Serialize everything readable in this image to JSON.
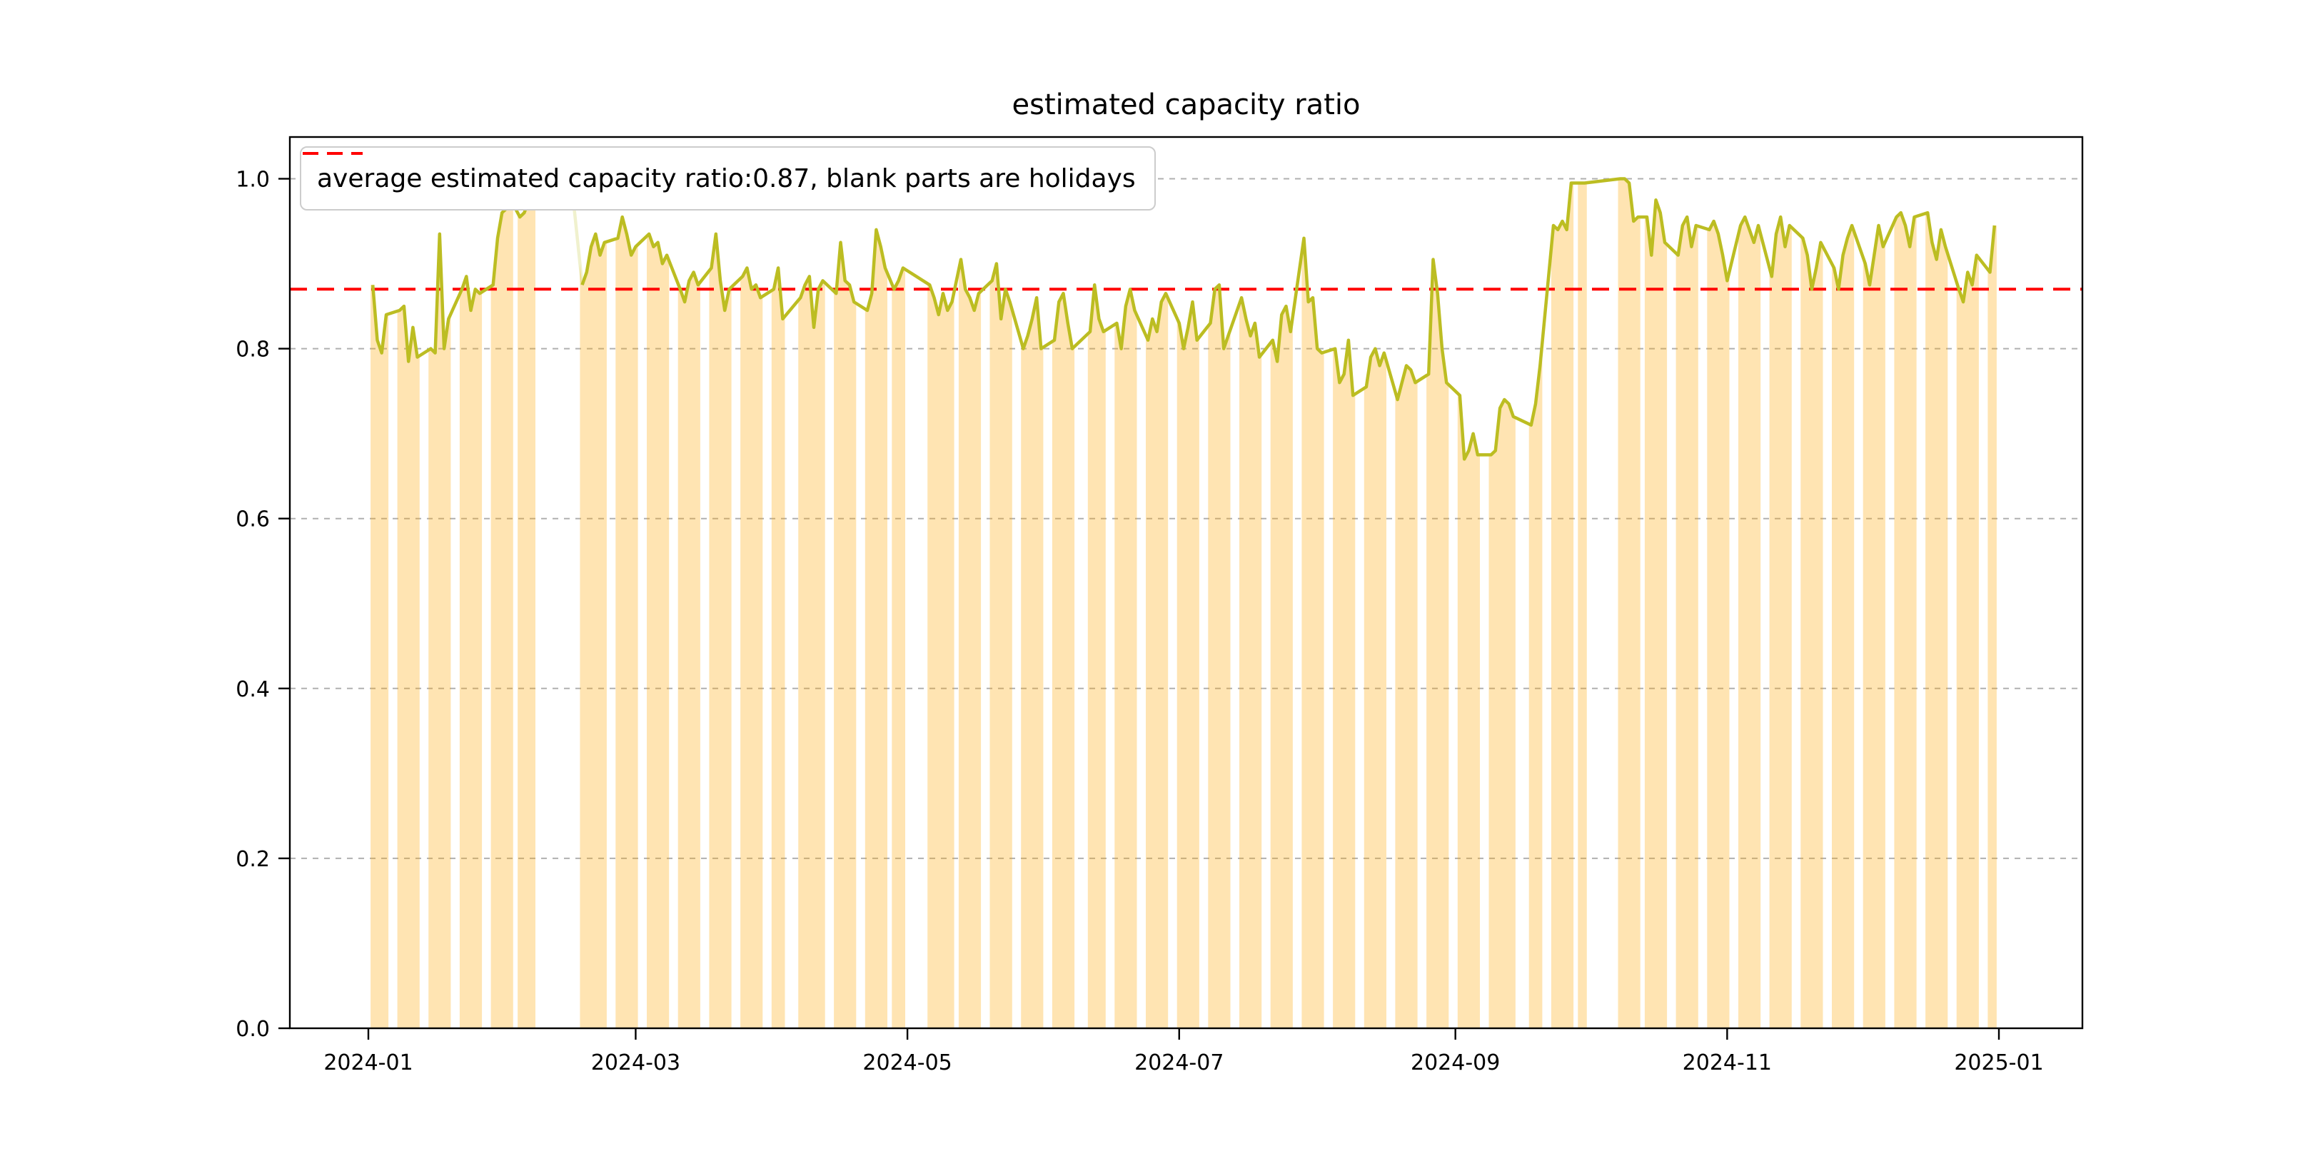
{
  "chart_data": {
    "type": "area",
    "title": "estimated capacity ratio",
    "legend": {
      "label": "average estimated capacity ratio:0.87, blank parts are holidays"
    },
    "average_line": {
      "value": 0.87
    },
    "x_axis": {
      "start_date": "2024-01-01",
      "tick_labels": [
        "2024-01",
        "2024-03",
        "2024-05",
        "2024-07",
        "2024-09",
        "2024-11",
        "2025-01"
      ],
      "tick_day_offsets": [
        0,
        60,
        121,
        182,
        244,
        305,
        366
      ]
    },
    "y_axis": {
      "tick_labels": [
        "0.0",
        "0.2",
        "0.4",
        "0.6",
        "0.8",
        "1.0"
      ],
      "ticks": [
        0.0,
        0.2,
        0.4,
        0.6,
        0.8,
        1.0
      ],
      "range": [
        0.0,
        1.05
      ]
    },
    "series": {
      "name": "estimated capacity ratio",
      "points": [
        [
          1,
          0.875
        ],
        [
          2,
          0.81
        ],
        [
          3,
          0.795
        ],
        [
          4,
          0.84
        ],
        [
          7,
          0.845
        ],
        [
          8,
          0.85
        ],
        [
          9,
          0.785
        ],
        [
          10,
          0.825
        ],
        [
          11,
          0.79
        ],
        [
          14,
          0.8
        ],
        [
          15,
          0.795
        ],
        [
          16,
          0.935
        ],
        [
          17,
          0.8
        ],
        [
          18,
          0.835
        ],
        [
          21,
          0.87
        ],
        [
          22,
          0.885
        ],
        [
          23,
          0.845
        ],
        [
          24,
          0.87
        ],
        [
          25,
          0.865
        ],
        [
          28,
          0.875
        ],
        [
          29,
          0.93
        ],
        [
          30,
          0.96
        ],
        [
          31,
          0.965
        ],
        [
          32,
          0.975
        ],
        [
          34,
          0.955
        ],
        [
          35,
          0.96
        ],
        [
          36,
          0.975
        ],
        [
          37,
          0.985
        ],
        [
          48,
          0.875
        ],
        [
          49,
          0.89
        ],
        [
          50,
          0.92
        ],
        [
          51,
          0.935
        ],
        [
          52,
          0.91
        ],
        [
          53,
          0.925
        ],
        [
          56,
          0.93
        ],
        [
          57,
          0.955
        ],
        [
          58,
          0.935
        ],
        [
          59,
          0.91
        ],
        [
          60,
          0.92
        ],
        [
          63,
          0.935
        ],
        [
          64,
          0.92
        ],
        [
          65,
          0.925
        ],
        [
          66,
          0.9
        ],
        [
          67,
          0.91
        ],
        [
          70,
          0.87
        ],
        [
          71,
          0.855
        ],
        [
          72,
          0.88
        ],
        [
          73,
          0.89
        ],
        [
          74,
          0.875
        ],
        [
          77,
          0.895
        ],
        [
          78,
          0.935
        ],
        [
          79,
          0.88
        ],
        [
          80,
          0.845
        ],
        [
          81,
          0.87
        ],
        [
          84,
          0.885
        ],
        [
          85,
          0.895
        ],
        [
          86,
          0.87
        ],
        [
          87,
          0.875
        ],
        [
          88,
          0.86
        ],
        [
          91,
          0.87
        ],
        [
          92,
          0.895
        ],
        [
          93,
          0.835
        ],
        [
          97,
          0.86
        ],
        [
          98,
          0.875
        ],
        [
          99,
          0.885
        ],
        [
          100,
          0.825
        ],
        [
          101,
          0.87
        ],
        [
          102,
          0.88
        ],
        [
          105,
          0.865
        ],
        [
          106,
          0.925
        ],
        [
          107,
          0.88
        ],
        [
          108,
          0.875
        ],
        [
          109,
          0.855
        ],
        [
          112,
          0.845
        ],
        [
          113,
          0.865
        ],
        [
          114,
          0.94
        ],
        [
          115,
          0.92
        ],
        [
          116,
          0.895
        ],
        [
          118,
          0.87
        ],
        [
          119,
          0.88
        ],
        [
          120,
          0.895
        ],
        [
          126,
          0.875
        ],
        [
          127,
          0.86
        ],
        [
          128,
          0.84
        ],
        [
          129,
          0.865
        ],
        [
          130,
          0.845
        ],
        [
          131,
          0.855
        ],
        [
          133,
          0.905
        ],
        [
          134,
          0.87
        ],
        [
          135,
          0.86
        ],
        [
          136,
          0.845
        ],
        [
          137,
          0.865
        ],
        [
          140,
          0.88
        ],
        [
          141,
          0.9
        ],
        [
          142,
          0.835
        ],
        [
          143,
          0.87
        ],
        [
          144,
          0.855
        ],
        [
          147,
          0.8
        ],
        [
          148,
          0.815
        ],
        [
          149,
          0.835
        ],
        [
          150,
          0.86
        ],
        [
          151,
          0.8
        ],
        [
          154,
          0.81
        ],
        [
          155,
          0.855
        ],
        [
          156,
          0.865
        ],
        [
          157,
          0.83
        ],
        [
          158,
          0.8
        ],
        [
          162,
          0.82
        ],
        [
          163,
          0.875
        ],
        [
          164,
          0.835
        ],
        [
          165,
          0.82
        ],
        [
          168,
          0.83
        ],
        [
          169,
          0.8
        ],
        [
          170,
          0.85
        ],
        [
          171,
          0.87
        ],
        [
          172,
          0.845
        ],
        [
          175,
          0.81
        ],
        [
          176,
          0.835
        ],
        [
          177,
          0.82
        ],
        [
          178,
          0.855
        ],
        [
          179,
          0.865
        ],
        [
          182,
          0.83
        ],
        [
          183,
          0.8
        ],
        [
          184,
          0.825
        ],
        [
          185,
          0.855
        ],
        [
          186,
          0.81
        ],
        [
          189,
          0.83
        ],
        [
          190,
          0.87
        ],
        [
          191,
          0.875
        ],
        [
          192,
          0.8
        ],
        [
          193,
          0.815
        ],
        [
          196,
          0.86
        ],
        [
          197,
          0.835
        ],
        [
          198,
          0.815
        ],
        [
          199,
          0.83
        ],
        [
          200,
          0.79
        ],
        [
          203,
          0.81
        ],
        [
          204,
          0.785
        ],
        [
          205,
          0.84
        ],
        [
          206,
          0.85
        ],
        [
          207,
          0.82
        ],
        [
          210,
          0.93
        ],
        [
          211,
          0.855
        ],
        [
          212,
          0.86
        ],
        [
          213,
          0.8
        ],
        [
          214,
          0.795
        ],
        [
          217,
          0.8
        ],
        [
          218,
          0.76
        ],
        [
          219,
          0.77
        ],
        [
          220,
          0.81
        ],
        [
          221,
          0.745
        ],
        [
          224,
          0.755
        ],
        [
          225,
          0.79
        ],
        [
          226,
          0.8
        ],
        [
          227,
          0.78
        ],
        [
          228,
          0.795
        ],
        [
          231,
          0.74
        ],
        [
          232,
          0.76
        ],
        [
          233,
          0.78
        ],
        [
          234,
          0.775
        ],
        [
          235,
          0.76
        ],
        [
          238,
          0.77
        ],
        [
          239,
          0.905
        ],
        [
          240,
          0.865
        ],
        [
          241,
          0.8
        ],
        [
          242,
          0.76
        ],
        [
          245,
          0.745
        ],
        [
          246,
          0.67
        ],
        [
          247,
          0.68
        ],
        [
          248,
          0.7
        ],
        [
          249,
          0.675
        ],
        [
          252,
          0.675
        ],
        [
          253,
          0.68
        ],
        [
          254,
          0.73
        ],
        [
          255,
          0.74
        ],
        [
          256,
          0.735
        ],
        [
          257,
          0.72
        ],
        [
          261,
          0.71
        ],
        [
          262,
          0.735
        ],
        [
          263,
          0.78
        ],
        [
          266,
          0.945
        ],
        [
          267,
          0.94
        ],
        [
          268,
          0.95
        ],
        [
          269,
          0.94
        ],
        [
          270,
          0.995
        ],
        [
          272,
          0.995
        ],
        [
          273,
          0.995
        ],
        [
          281,
          1.0
        ],
        [
          282,
          1.0
        ],
        [
          283,
          0.995
        ],
        [
          284,
          0.95
        ],
        [
          285,
          0.955
        ],
        [
          287,
          0.955
        ],
        [
          288,
          0.91
        ],
        [
          289,
          0.975
        ],
        [
          290,
          0.96
        ],
        [
          291,
          0.925
        ],
        [
          294,
          0.91
        ],
        [
          295,
          0.945
        ],
        [
          296,
          0.955
        ],
        [
          297,
          0.92
        ],
        [
          298,
          0.945
        ],
        [
          301,
          0.94
        ],
        [
          302,
          0.95
        ],
        [
          303,
          0.935
        ],
        [
          304,
          0.91
        ],
        [
          305,
          0.88
        ],
        [
          308,
          0.945
        ],
        [
          309,
          0.955
        ],
        [
          310,
          0.94
        ],
        [
          311,
          0.925
        ],
        [
          312,
          0.945
        ],
        [
          315,
          0.885
        ],
        [
          316,
          0.935
        ],
        [
          317,
          0.955
        ],
        [
          318,
          0.92
        ],
        [
          319,
          0.945
        ],
        [
          322,
          0.93
        ],
        [
          323,
          0.91
        ],
        [
          324,
          0.87
        ],
        [
          325,
          0.895
        ],
        [
          326,
          0.925
        ],
        [
          329,
          0.895
        ],
        [
          330,
          0.87
        ],
        [
          331,
          0.91
        ],
        [
          332,
          0.93
        ],
        [
          333,
          0.945
        ],
        [
          336,
          0.9
        ],
        [
          337,
          0.875
        ],
        [
          338,
          0.91
        ],
        [
          339,
          0.945
        ],
        [
          340,
          0.92
        ],
        [
          343,
          0.955
        ],
        [
          344,
          0.96
        ],
        [
          345,
          0.945
        ],
        [
          346,
          0.92
        ],
        [
          347,
          0.955
        ],
        [
          350,
          0.96
        ],
        [
          351,
          0.925
        ],
        [
          352,
          0.905
        ],
        [
          353,
          0.94
        ],
        [
          354,
          0.92
        ],
        [
          357,
          0.87
        ],
        [
          358,
          0.855
        ],
        [
          359,
          0.89
        ],
        [
          360,
          0.875
        ],
        [
          361,
          0.91
        ],
        [
          364,
          0.89
        ],
        [
          365,
          0.945
        ]
      ]
    },
    "holiday_faint_span": [
      37,
      48
    ],
    "holiday_interpolation_points": [
      [
        37,
        0.985
      ],
      [
        40,
        0.99
      ],
      [
        46,
        0.975
      ],
      [
        48,
        0.875
      ]
    ],
    "colors": {
      "line": "#bcbd22",
      "fill": "rgba(255,165,0,0.30)",
      "average": "#ff0000",
      "grid": "#b0b0b0",
      "spine": "#000000",
      "legend_border": "#cccccc"
    }
  }
}
